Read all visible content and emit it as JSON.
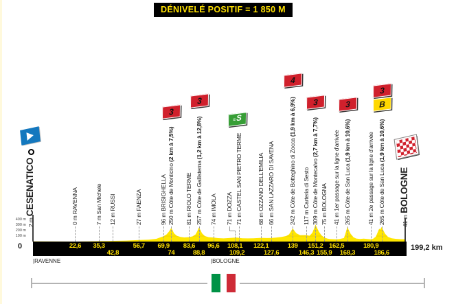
{
  "header": {
    "title": "DÉNIVELÉ POSITIF = 1 850 M"
  },
  "terminus": {
    "start": {
      "elevation": "2 m",
      "name": "CESENATICO",
      "km_label": "0"
    },
    "finish": {
      "elevation": "41 m",
      "name": "BOLOGNE",
      "km_label": "199,2 km"
    }
  },
  "axis": {
    "elevation_ticks": [
      "400 m",
      "300 m",
      "200 m",
      "100 m"
    ],
    "zero_label": "0",
    "total_label": "199,2 km",
    "regions": [
      {
        "label": "|RAVENNE",
        "km": 0
      },
      {
        "label": "|BOLOGNE",
        "km": 95.2
      }
    ]
  },
  "icons": {
    "start": "depart-flag-icon",
    "finish": "checkered-flag-icon",
    "country_flag": "italy-flag"
  },
  "colors": {
    "profile_yellow": "#FFE600",
    "grid_yellow": "#D9B900",
    "bar_black": "#000000",
    "bar_number_yellow": "#FFE000",
    "climb_badge_red": "#D0202C",
    "sprint_badge_green": "#379E36",
    "bonus_badge_yellow": "#FFD800",
    "start_flag_blue": "#1478BE",
    "italy_green": "#009246",
    "italy_red": "#CE2B37"
  },
  "chart_data": {
    "type": "area",
    "title": "DÉNIVELÉ POSITIF = 1 850 M",
    "x_range_km": [
      0,
      199.2
    ],
    "y_range_m": [
      0,
      400
    ],
    "grid_levels_m": [
      100,
      200,
      300,
      400
    ],
    "profile_points": [
      [
        0,
        2
      ],
      [
        5,
        2
      ],
      [
        15,
        1
      ],
      [
        22.6,
        0
      ],
      [
        28,
        3
      ],
      [
        35.3,
        7
      ],
      [
        40,
        10
      ],
      [
        42.8,
        12
      ],
      [
        50,
        18
      ],
      [
        56.7,
        27
      ],
      [
        62,
        35
      ],
      [
        66,
        50
      ],
      [
        69.9,
        96
      ],
      [
        71.5,
        130
      ],
      [
        73,
        190
      ],
      [
        74,
        250
      ],
      [
        74.8,
        200
      ],
      [
        75.5,
        150
      ],
      [
        77,
        105
      ],
      [
        79,
        85
      ],
      [
        81,
        75
      ],
      [
        83.6,
        81
      ],
      [
        85.5,
        95
      ],
      [
        87,
        130
      ],
      [
        88,
        190
      ],
      [
        88.8,
        257
      ],
      [
        89.6,
        210
      ],
      [
        90.5,
        150
      ],
      [
        92,
        100
      ],
      [
        94,
        80
      ],
      [
        96.6,
        74
      ],
      [
        99,
        62
      ],
      [
        102,
        58
      ],
      [
        105,
        64
      ],
      [
        108.1,
        71
      ],
      [
        109.2,
        71
      ],
      [
        112,
        60
      ],
      [
        115,
        57
      ],
      [
        118,
        60
      ],
      [
        122.1,
        68
      ],
      [
        125,
        64
      ],
      [
        127.6,
        66
      ],
      [
        130,
        72
      ],
      [
        133,
        85
      ],
      [
        135.5,
        100
      ],
      [
        137,
        130
      ],
      [
        138,
        180
      ],
      [
        139,
        242
      ],
      [
        139.8,
        200
      ],
      [
        141,
        150
      ],
      [
        143,
        115
      ],
      [
        146.3,
        117
      ],
      [
        148,
        105
      ],
      [
        149.5,
        160
      ],
      [
        150.5,
        240
      ],
      [
        151.2,
        309
      ],
      [
        152,
        250
      ],
      [
        153,
        180
      ],
      [
        154.5,
        110
      ],
      [
        155.9,
        75
      ],
      [
        157.5,
        55
      ],
      [
        159,
        45
      ],
      [
        162.5,
        41
      ],
      [
        164,
        45
      ],
      [
        166.4,
        64
      ],
      [
        167,
        120
      ],
      [
        167.7,
        200
      ],
      [
        168.3,
        265
      ],
      [
        169,
        210
      ],
      [
        170,
        140
      ],
      [
        171.5,
        80
      ],
      [
        173,
        55
      ],
      [
        175,
        48
      ],
      [
        177,
        52
      ],
      [
        179,
        46
      ],
      [
        180.9,
        41
      ],
      [
        182,
        50
      ],
      [
        183.5,
        90
      ],
      [
        184.5,
        170
      ],
      [
        185.3,
        235
      ],
      [
        185.8,
        215
      ],
      [
        186.6,
        265
      ],
      [
        187.4,
        210
      ],
      [
        188.5,
        140
      ],
      [
        190,
        85
      ],
      [
        192,
        60
      ],
      [
        194,
        50
      ],
      [
        196.5,
        44
      ],
      [
        199.2,
        41
      ]
    ],
    "waypoints": [
      {
        "km": 22.6,
        "km_label": "22,6",
        "row": "top",
        "label": "0 m RAVENNA"
      },
      {
        "km": 35.3,
        "km_label": "35,3",
        "row": "top",
        "label": "7 m San Michele"
      },
      {
        "km": 42.8,
        "km_label": "42,8",
        "row": "bottom",
        "label": "12 m RUSSI"
      },
      {
        "km": 56.7,
        "km_label": "56,7",
        "row": "top",
        "label": "27 m FAENZA"
      },
      {
        "km": 69.9,
        "km_label": "69,9",
        "row": "top",
        "label": "96 m BRISIGHELLA"
      },
      {
        "km": 74,
        "km_label": "74",
        "row": "bottom",
        "label": "250 m Côte de Monticino ",
        "bold": "(2 km à 7,5%)",
        "badges": [
          {
            "type": "cat",
            "text": "3"
          }
        ]
      },
      {
        "km": 83.6,
        "km_label": "83,6",
        "row": "top",
        "label": "81 m RIOLO TERME"
      },
      {
        "km": 88.8,
        "km_label": "88,8",
        "row": "bottom",
        "label": "257 m Côte de Gallisterna ",
        "bold": "(1,2 km à 12,8%)",
        "badges": [
          {
            "type": "cat",
            "text": "3"
          }
        ]
      },
      {
        "km": 96.6,
        "km_label": "96,6",
        "row": "top",
        "label": "74 m IMOLA"
      },
      {
        "km": 108.1,
        "km_label": "108,1",
        "row": "top",
        "label": "71 m DOZZA",
        "label_offset": -8,
        "elbow": true
      },
      {
        "km": 109.2,
        "km_label": "109,2",
        "row": "bottom",
        "label": "71 m CASTEL SAN PIETRO TERME",
        "label_offset": 3,
        "badges": [
          {
            "type": "sprint",
            "text": "S"
          }
        ]
      },
      {
        "km": 122.1,
        "km_label": "122,1",
        "row": "top",
        "label": "68 m OZZANO DELL'EMILIA"
      },
      {
        "km": 127.6,
        "km_label": "127,6",
        "row": "bottom",
        "label": "66 m SAN LAZZARO DI SAVENA"
      },
      {
        "km": 139,
        "km_label": "139",
        "row": "top",
        "label": "242 m Côte de Botteghino di Zocca ",
        "bold": "(1,9 km à 6,9%)",
        "badges": [
          {
            "type": "cat",
            "text": "4"
          }
        ]
      },
      {
        "km": 146.3,
        "km_label": "146,3",
        "row": "bottom",
        "label": "117 m Carteria di Sesto"
      },
      {
        "km": 151.2,
        "km_label": "151,2",
        "row": "top",
        "label": "309 m Côte de Montecalvo ",
        "bold": "(2,7 km à 7,7%)",
        "badges": [
          {
            "type": "cat",
            "text": "3"
          }
        ]
      },
      {
        "km": 155.9,
        "km_label": "155,9",
        "row": "bottom",
        "label": "75 m BOLOGNA"
      },
      {
        "km": 162.5,
        "km_label": "162,5",
        "row": "top",
        "label": "41 m 1er passage sur la ligne d'arrivée"
      },
      {
        "km": 168.3,
        "km_label": "168,3",
        "row": "bottom",
        "label": "265 m Côte de San Luca ",
        "bold": "(1,9 km à 10,6%)",
        "badges": [
          {
            "type": "cat",
            "text": "3"
          }
        ]
      },
      {
        "km": 180.9,
        "km_label": "180,9",
        "row": "top",
        "label": "41 m 2e passage sur la ligne d'arrivée"
      },
      {
        "km": 186.6,
        "km_label": "186,6",
        "row": "bottom",
        "label": "265 m Côte de San Luca ",
        "bold": "(1,9 km à 10,6%)",
        "badges": [
          {
            "type": "bonus",
            "text": "B"
          },
          {
            "type": "cat",
            "text": "3"
          }
        ]
      }
    ]
  }
}
